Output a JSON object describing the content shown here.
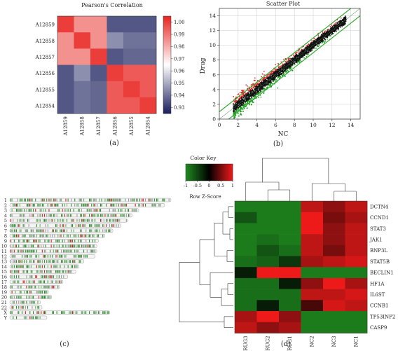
{
  "figure": {
    "panel_labels": [
      "(a)",
      "(b)",
      "(c)",
      "(d)"
    ]
  },
  "chart_data": [
    {
      "id": "a",
      "type": "heatmap",
      "title": "Pearson's Correlation",
      "rows": [
        "A12859",
        "A12858",
        "A12857",
        "A12856",
        "A12855",
        "A12854"
      ],
      "cols": [
        "A12859",
        "A12858",
        "A12857",
        "A12856",
        "A12855",
        "A12854"
      ],
      "values": [
        [
          1.0,
          0.985,
          0.985,
          0.935,
          0.935,
          0.935
        ],
        [
          0.985,
          1.0,
          0.985,
          0.945,
          0.94,
          0.94
        ],
        [
          0.985,
          0.985,
          1.0,
          0.935,
          0.938,
          0.938
        ],
        [
          0.935,
          0.945,
          0.935,
          1.0,
          0.995,
          0.995
        ],
        [
          0.935,
          0.94,
          0.938,
          0.995,
          1.0,
          0.995
        ],
        [
          0.935,
          0.94,
          0.938,
          0.995,
          0.995,
          1.0
        ]
      ],
      "colorbar": {
        "min": 0.925,
        "max": 1.005,
        "ticks": [
          "1.00",
          "0.99",
          "0.98",
          "0.97",
          "0.96",
          "0.95",
          "0.94",
          "0.93"
        ],
        "tick_values": [
          1.0,
          0.99,
          0.98,
          0.97,
          0.96,
          0.95,
          0.94,
          0.93
        ],
        "low_color": "#1a1f5c",
        "mid_color": "#ffffff",
        "high_color": "#e8231f"
      }
    },
    {
      "id": "b",
      "type": "scatter",
      "title": "Scatter Plot",
      "xlabel": "NC",
      "ylabel": "Drug",
      "xlim": [
        0,
        15
      ],
      "ylim": [
        0,
        15
      ],
      "x_ticks": [
        "0",
        "2",
        "4",
        "6",
        "8",
        "10",
        "12",
        "14"
      ],
      "y_ticks": [
        "0",
        "2",
        "4",
        "6",
        "8",
        "10",
        "12",
        "14"
      ],
      "x_tick_values": [
        0,
        2,
        4,
        6,
        8,
        10,
        12,
        14
      ],
      "y_tick_values": [
        0,
        2,
        4,
        6,
        8,
        10,
        12,
        14
      ],
      "grid": true,
      "fold_lines": [
        {
          "x": [
            0,
            15
          ],
          "y": [
            1,
            16
          ]
        },
        {
          "x": [
            0,
            15
          ],
          "y": [
            -1,
            14
          ]
        }
      ],
      "point_cloud": {
        "x_range": [
          1.5,
          13.5
        ],
        "colors": {
          "up": "#d81c1c",
          "mid": "#111111",
          "down": "#1a9a1a"
        }
      },
      "line_color": "#33aa33"
    },
    {
      "id": "c",
      "type": "other",
      "chromosomes": [
        "1",
        "2",
        "3",
        "4",
        "5",
        "6",
        "7",
        "8",
        "9",
        "10",
        "11",
        "12",
        "13",
        "14",
        "15",
        "16",
        "17",
        "18",
        "19",
        "20",
        "21",
        "22",
        "X",
        "Y"
      ],
      "relative_lengths": [
        1.0,
        0.96,
        0.8,
        0.76,
        0.73,
        0.69,
        0.64,
        0.59,
        0.55,
        0.54,
        0.54,
        0.53,
        0.46,
        0.43,
        0.41,
        0.36,
        0.33,
        0.31,
        0.24,
        0.26,
        0.19,
        0.2,
        0.62,
        0.23
      ]
    },
    {
      "id": "d",
      "type": "heatmap",
      "color_key": {
        "title": "Color Key",
        "subtitle": "Row Z-Score",
        "ticks": [
          "-1",
          "-0.5",
          "0",
          "0.5",
          "1"
        ],
        "tick_values": [
          -1,
          -0.5,
          0,
          0.5,
          1
        ],
        "low_color": "#1f8a1f",
        "mid_color": "#000000",
        "high_color": "#ee1a1a"
      },
      "rows": [
        "DCTN4",
        "CCND1",
        "STAT3",
        "JAK1",
        "BNP3L",
        "STAT5B",
        "BECLIN1",
        "HF1A",
        "IL6ST",
        "CCNB1",
        "TP53INP2",
        "CASP9"
      ],
      "cols": [
        "DRUG3",
        "DRUG2",
        "DRUG1",
        "NC2",
        "NC3",
        "NC1"
      ],
      "values": [
        [
          -0.9,
          -0.9,
          -0.9,
          0.8,
          0.6,
          0.8
        ],
        [
          -0.6,
          -0.9,
          -0.9,
          1.0,
          0.5,
          0.7
        ],
        [
          -0.9,
          -0.9,
          -0.9,
          1.0,
          0.6,
          0.8
        ],
        [
          -0.9,
          -0.8,
          -0.9,
          0.8,
          0.6,
          0.8
        ],
        [
          -0.9,
          -0.6,
          -0.8,
          0.8,
          0.5,
          0.8
        ],
        [
          -0.8,
          -0.7,
          -0.4,
          0.7,
          0.8,
          0.9
        ],
        [
          -0.2,
          1.0,
          1.0,
          -0.9,
          -0.9,
          -0.9
        ],
        [
          -0.8,
          -0.8,
          -0.2,
          0.6,
          1.0,
          0.7
        ],
        [
          -0.8,
          -0.8,
          -0.8,
          0.8,
          0.8,
          0.9
        ],
        [
          -0.8,
          -0.2,
          -0.8,
          0.3,
          0.9,
          0.8
        ],
        [
          0.7,
          1.0,
          0.6,
          -0.9,
          -0.9,
          -0.9
        ],
        [
          0.8,
          0.6,
          0.7,
          -0.9,
          -0.9,
          -0.9
        ]
      ]
    }
  ]
}
